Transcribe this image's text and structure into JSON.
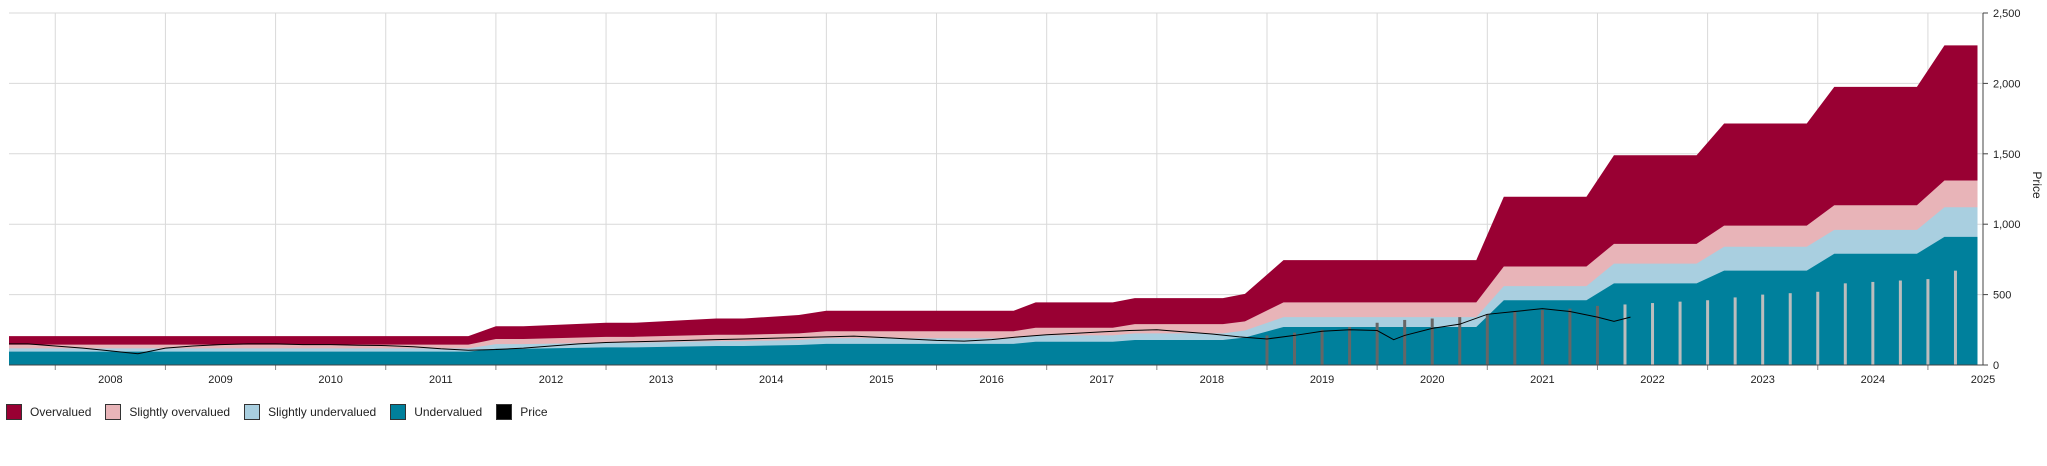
{
  "chart_data": {
    "type": "area",
    "ylabel": "Price",
    "ylim": [
      0,
      2500
    ],
    "yticks": [
      "0",
      "500",
      "1,000",
      "1,500",
      "2,000",
      "2,500"
    ],
    "ytick_values": [
      0,
      500,
      1000,
      1500,
      2000,
      2500
    ],
    "xlim": [
      2007.58,
      2025.5
    ],
    "xticks": [
      "2008",
      "2009",
      "2010",
      "2011",
      "2012",
      "2013",
      "2014",
      "2015",
      "2016",
      "2017",
      "2018",
      "2019",
      "2020",
      "2021",
      "2022",
      "2023",
      "2024",
      "2025"
    ],
    "grid": true,
    "legend_placement": "bottom-left",
    "colors": {
      "overvalued": "#990033",
      "slightly_overvalued": "#e8b4b8",
      "slightly_undervalued": "#a9cfe0",
      "undervalued": "#00809c",
      "price": "#000000"
    },
    "legend": [
      "Overvalued",
      "Slightly overvalued",
      "Slightly undervalued",
      "Undervalued",
      "Price"
    ],
    "series": [
      {
        "name": "Overvalued",
        "x": [
          2007.58,
          2011.6,
          2011.75,
          2012.0,
          2012.25,
          2013.0,
          2013.25,
          2014.0,
          2014.25,
          2014.75,
          2015.0,
          2016.7,
          2016.9,
          2017.6,
          2017.8,
          2018.6,
          2018.8,
          2019.15,
          2020.9,
          2021.15,
          2021.9,
          2022.15,
          2022.9,
          2023.15,
          2023.9,
          2024.15,
          2024.9,
          2025.15,
          2025.45
        ],
        "values": [
          205,
          205,
          205,
          275,
          275,
          300,
          300,
          330,
          330,
          355,
          385,
          385,
          445,
          445,
          475,
          475,
          505,
          745,
          745,
          1195,
          1195,
          1490,
          1490,
          1715,
          1715,
          1975,
          1975,
          2270,
          2270
        ]
      },
      {
        "name": "Slightly overvalued",
        "x": [
          2007.58,
          2011.6,
          2011.75,
          2012.0,
          2012.25,
          2013.0,
          2013.25,
          2014.0,
          2014.25,
          2014.75,
          2015.0,
          2016.7,
          2016.9,
          2017.6,
          2017.8,
          2018.6,
          2018.8,
          2019.15,
          2020.9,
          2021.15,
          2021.9,
          2022.15,
          2022.9,
          2023.15,
          2023.9,
          2024.15,
          2024.9,
          2025.15,
          2025.45
        ],
        "values": [
          145,
          145,
          145,
          185,
          185,
          200,
          200,
          215,
          215,
          225,
          240,
          240,
          265,
          265,
          290,
          290,
          310,
          445,
          445,
          700,
          700,
          860,
          860,
          990,
          990,
          1135,
          1135,
          1310,
          1310
        ]
      },
      {
        "name": "Slightly undervalued",
        "x": [
          2007.58,
          2011.6,
          2011.75,
          2012.0,
          2012.25,
          2013.0,
          2013.25,
          2014.0,
          2014.25,
          2014.75,
          2015.0,
          2016.7,
          2016.9,
          2017.6,
          2017.8,
          2018.6,
          2018.8,
          2019.15,
          2020.9,
          2021.15,
          2021.9,
          2022.15,
          2022.9,
          2023.15,
          2023.9,
          2024.15,
          2024.9,
          2025.15,
          2025.45
        ],
        "values": [
          118,
          118,
          118,
          148,
          148,
          158,
          158,
          170,
          170,
          178,
          190,
          190,
          210,
          210,
          225,
          225,
          245,
          340,
          340,
          560,
          560,
          720,
          720,
          840,
          840,
          960,
          960,
          1120,
          1120
        ]
      },
      {
        "name": "Undervalued",
        "x": [
          2007.58,
          2011.6,
          2011.75,
          2012.0,
          2012.25,
          2013.0,
          2013.25,
          2014.0,
          2014.25,
          2014.75,
          2015.0,
          2016.7,
          2016.9,
          2017.6,
          2017.8,
          2018.6,
          2018.8,
          2019.15,
          2020.9,
          2021.15,
          2021.9,
          2022.15,
          2022.9,
          2023.15,
          2023.9,
          2024.15,
          2024.9,
          2025.15,
          2025.45
        ],
        "values": [
          95,
          95,
          95,
          115,
          115,
          125,
          125,
          135,
          135,
          142,
          150,
          150,
          165,
          165,
          178,
          178,
          195,
          270,
          270,
          460,
          460,
          580,
          580,
          670,
          670,
          790,
          790,
          910,
          910
        ]
      },
      {
        "name": "Price",
        "x": [
          2007.58,
          2007.75,
          2008.0,
          2008.25,
          2008.5,
          2008.75,
          2009.0,
          2009.25,
          2009.5,
          2009.75,
          2010.0,
          2010.25,
          2010.5,
          2010.75,
          2011.0,
          2011.25,
          2011.5,
          2011.75,
          2012.0,
          2012.25,
          2012.5,
          2012.75,
          2013.0,
          2013.25,
          2013.5,
          2013.75,
          2014.0,
          2014.25,
          2014.5,
          2014.75,
          2015.0,
          2015.25,
          2015.5,
          2015.75,
          2016.0,
          2016.25,
          2016.5,
          2016.75,
          2017.0,
          2017.25,
          2017.5,
          2017.75,
          2018.0,
          2018.25,
          2018.5,
          2018.75,
          2019.0,
          2019.25,
          2019.5,
          2019.75,
          2020.0,
          2020.15,
          2020.25,
          2020.5,
          2020.75,
          2021.0,
          2021.25,
          2021.5,
          2021.75,
          2022.0,
          2022.15,
          2022.3
        ],
        "values": [
          150,
          150,
          135,
          120,
          100,
          80,
          120,
          135,
          145,
          150,
          150,
          145,
          145,
          140,
          138,
          130,
          115,
          105,
          110,
          120,
          135,
          150,
          160,
          165,
          170,
          175,
          180,
          185,
          190,
          195,
          200,
          205,
          195,
          185,
          175,
          170,
          180,
          200,
          215,
          225,
          235,
          245,
          250,
          235,
          220,
          200,
          185,
          210,
          240,
          250,
          245,
          180,
          210,
          260,
          290,
          360,
          380,
          400,
          380,
          340,
          310,
          340
        ]
      }
    ],
    "bars": {
      "x": [
        2019.0,
        2019.25,
        2019.5,
        2019.75,
        2020.0,
        2020.25,
        2020.5,
        2020.75,
        2021.0,
        2021.25,
        2021.5,
        2021.75,
        2022.0,
        2022.25,
        2022.5,
        2022.75,
        2023.0,
        2023.25,
        2023.5,
        2023.75,
        2024.0,
        2024.25,
        2024.5,
        2024.75,
        2025.0,
        2025.25
      ],
      "values": [
        210,
        230,
        250,
        270,
        300,
        320,
        330,
        340,
        360,
        380,
        390,
        400,
        420,
        430,
        440,
        450,
        460,
        480,
        500,
        510,
        520,
        580,
        590,
        600,
        610,
        670
      ]
    }
  }
}
